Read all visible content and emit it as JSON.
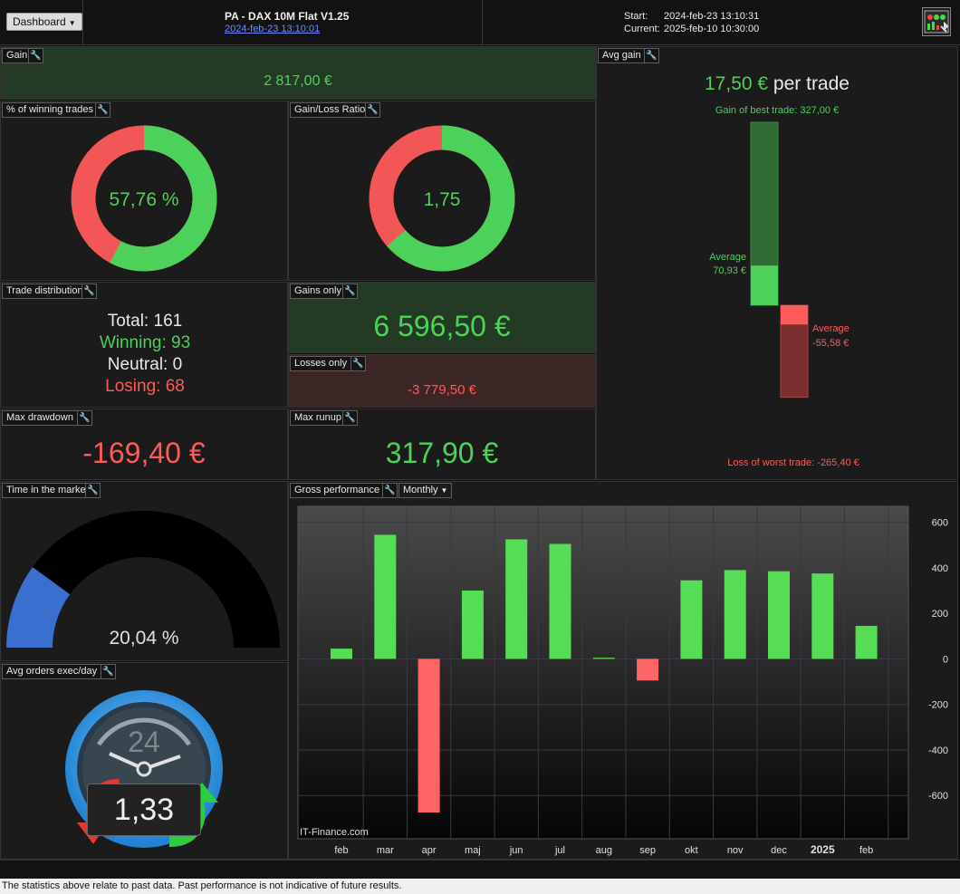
{
  "header": {
    "dashboard_label": "Dashboard",
    "system_title": "PA - DAX 10M Flat V1.25",
    "system_date": "2024-feb-23 13:10:01",
    "start_label": "Start:",
    "start_value": "2024-feb-23 13:10:31",
    "current_label": "Current:",
    "current_value": "2025-feb-10 10:30:00"
  },
  "gain": {
    "title": "Gain",
    "value": "2 817,00 €"
  },
  "winning_pct": {
    "title": "% of winning trades",
    "value": "57,76 %",
    "fraction": 0.5776
  },
  "gain_loss_ratio": {
    "title": "Gain/Loss Ratio",
    "value": "1,75",
    "fraction": 0.636
  },
  "trade_distribution": {
    "title": "Trade distribution",
    "total_label": "Total:",
    "total": "161",
    "winning_label": "Winning:",
    "winning": "93",
    "neutral_label": "Neutral:",
    "neutral": "0",
    "losing_label": "Losing:",
    "losing": "68"
  },
  "gains_only": {
    "title": "Gains only",
    "value": "6 596,50 €"
  },
  "losses_only": {
    "title": "Losses only",
    "value": "-3 779,50 €"
  },
  "max_drawdown": {
    "title": "Max drawdown",
    "value": "-169,40 €"
  },
  "max_runup": {
    "title": "Max runup",
    "value": "317,90 €"
  },
  "avg_gain": {
    "title": "Avg gain",
    "value": "17,50 €",
    "per_trade": "per trade",
    "best_trade_label": "Gain of best trade: 327,00 €",
    "avg_gain_label": "Average",
    "avg_gain_value": "70,93 €",
    "avg_loss_label": "Average",
    "avg_loss_value": "-55,58 €",
    "worst_trade_label": "Loss of worst trade: -265,40 €",
    "best": 327.0,
    "avg_win": 70.93,
    "avg_loss": -55.58,
    "worst": -265.4
  },
  "time_in_market": {
    "title": "Time in the market",
    "value": "20,04 %",
    "fraction": 0.2004
  },
  "avg_orders": {
    "title": "Avg orders exec/day",
    "value": "1,33",
    "dial_label": "24"
  },
  "gross_performance": {
    "title": "Gross performance",
    "period_label": "Monthly",
    "watermark": "IT-Finance.com"
  },
  "chart_data": {
    "type": "bar",
    "categories": [
      "feb",
      "mar",
      "apr",
      "maj",
      "jun",
      "jul",
      "aug",
      "sep",
      "okt",
      "nov",
      "dec",
      "2025",
      "feb"
    ],
    "values": [
      45,
      545,
      -675,
      300,
      525,
      505,
      5,
      -95,
      345,
      390,
      385,
      375,
      145
    ],
    "yticks": [
      600,
      400,
      200,
      0,
      -200,
      -400,
      -600
    ],
    "ylim": [
      -790,
      670
    ],
    "positive_color": "#55dd55",
    "negative_color": "#ff6565",
    "grid": true
  },
  "disclaimer": "The statistics above relate to past data. Past performance is not indicative of future results."
}
